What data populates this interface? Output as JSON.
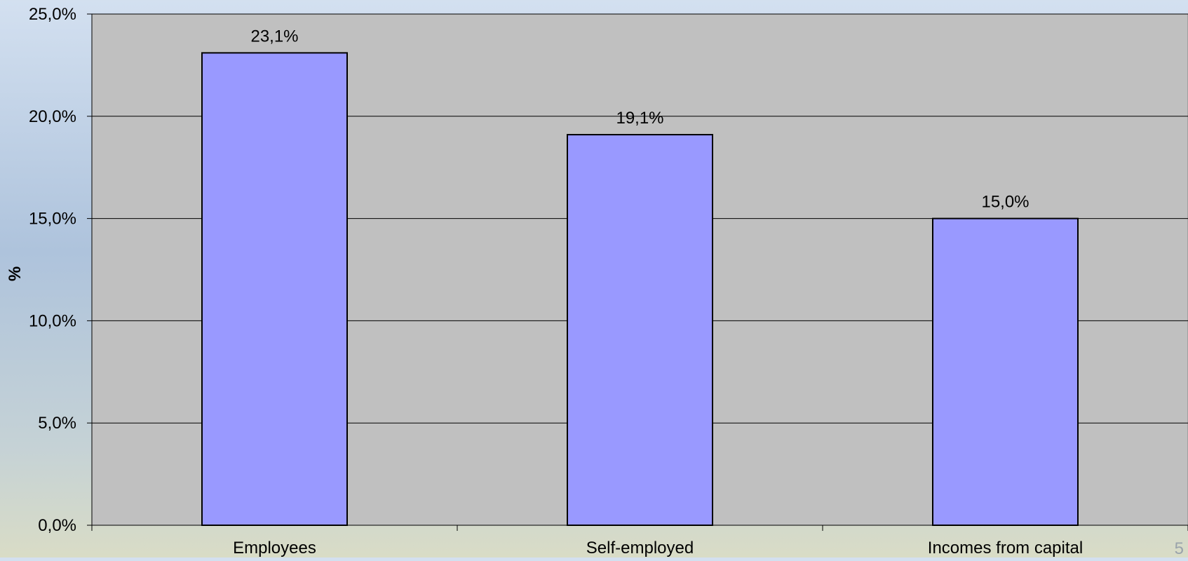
{
  "colors": {
    "plot_background": "#c0c0c0",
    "bar_fill": "#9999ff",
    "bar_stroke": "#000000",
    "gridline": "#000000"
  },
  "chart_data": {
    "type": "bar",
    "categories": [
      "Employees",
      "Self-employed",
      "Incomes from capital"
    ],
    "values": [
      23.1,
      19.1,
      15.0
    ],
    "data_labels": [
      "23,1%",
      "19,1%",
      "15,0%"
    ],
    "title": "",
    "xlabel": "",
    "ylabel": "%",
    "ylim": [
      0,
      25
    ],
    "yticks": [
      0,
      5,
      10,
      15,
      20,
      25
    ],
    "ytick_labels": [
      "0,0%",
      "5,0%",
      "10,0%",
      "15,0%",
      "20,0%",
      "25,0%"
    ],
    "grid": true,
    "legend": "none"
  },
  "page_number": "5"
}
